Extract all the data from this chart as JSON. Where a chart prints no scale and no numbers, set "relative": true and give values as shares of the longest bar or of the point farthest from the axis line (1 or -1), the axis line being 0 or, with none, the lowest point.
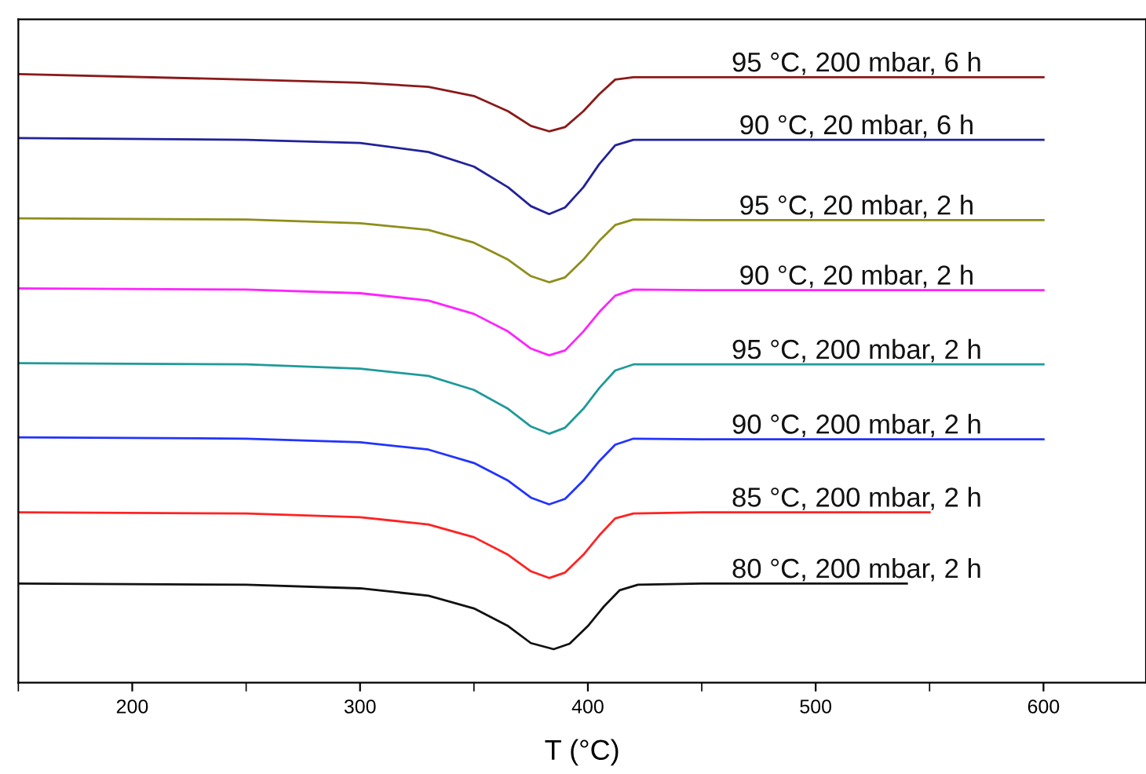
{
  "chart_data": {
    "type": "line",
    "relative": true,
    "xlabel": "T (°C)",
    "xlim": [
      150,
      645
    ],
    "xticks": [
      {
        "value": 150,
        "label": null
      },
      200,
      {
        "value": 250,
        "label": null
      },
      300,
      {
        "value": 350,
        "label": null
      },
      400,
      {
        "value": 450,
        "label": null
      },
      500,
      {
        "value": 550,
        "label": null
      },
      600
    ],
    "grid": false,
    "legend": false,
    "marker": "none",
    "line_style": "solid",
    "tick_labels": "x",
    "series": [
      {
        "name": "95 °C, 200 mbar, 6 h",
        "color": "#8b1a1a",
        "x": [
          150,
          250,
          300,
          330,
          350,
          365,
          375,
          383,
          390,
          398,
          405,
          412,
          420,
          450,
          600
        ],
        "values": [
          1.0,
          0.991,
          0.986,
          0.979,
          0.964,
          0.939,
          0.915,
          0.906,
          0.913,
          0.939,
          0.967,
          0.991,
          0.995,
          0.995,
          0.995
        ]
      },
      {
        "name": "90 °C, 20 mbar, 6 h",
        "color": "#22229a",
        "x": [
          150,
          250,
          300,
          330,
          350,
          365,
          375,
          383,
          390,
          398,
          405,
          412,
          420,
          450,
          600
        ],
        "values": [
          0.895,
          0.892,
          0.887,
          0.872,
          0.848,
          0.814,
          0.783,
          0.77,
          0.781,
          0.814,
          0.852,
          0.883,
          0.892,
          0.892,
          0.892
        ]
      },
      {
        "name": "95 °C, 20 mbar, 2 h",
        "color": "#8e8e1c",
        "x": [
          150,
          250,
          300,
          330,
          350,
          365,
          375,
          383,
          390,
          398,
          405,
          412,
          420,
          450,
          600
        ],
        "values": [
          0.763,
          0.761,
          0.755,
          0.744,
          0.723,
          0.695,
          0.668,
          0.658,
          0.666,
          0.695,
          0.726,
          0.752,
          0.761,
          0.76,
          0.76
        ]
      },
      {
        "name": "90 °C, 20 mbar, 2 h",
        "color": "#ff22ff",
        "x": [
          150,
          250,
          300,
          330,
          350,
          365,
          375,
          383,
          390,
          398,
          405,
          412,
          420,
          450,
          600
        ],
        "values": [
          0.648,
          0.646,
          0.64,
          0.628,
          0.606,
          0.577,
          0.549,
          0.538,
          0.546,
          0.577,
          0.609,
          0.636,
          0.646,
          0.645,
          0.645
        ]
      },
      {
        "name": "95 °C, 200 mbar, 2 h",
        "color": "#1f9a9a",
        "x": [
          150,
          250,
          300,
          330,
          350,
          365,
          375,
          383,
          390,
          398,
          405,
          412,
          420,
          450,
          600
        ],
        "values": [
          0.525,
          0.523,
          0.516,
          0.504,
          0.481,
          0.45,
          0.421,
          0.409,
          0.419,
          0.45,
          0.484,
          0.513,
          0.523,
          0.523,
          0.523
        ]
      },
      {
        "name": "90 °C, 200 mbar, 2 h",
        "color": "#2233ff",
        "x": [
          150,
          250,
          300,
          330,
          350,
          365,
          375,
          383,
          390,
          398,
          405,
          412,
          420,
          450,
          600
        ],
        "values": [
          0.403,
          0.401,
          0.395,
          0.383,
          0.361,
          0.332,
          0.304,
          0.293,
          0.302,
          0.332,
          0.364,
          0.391,
          0.401,
          0.4,
          0.4
        ]
      },
      {
        "name": "85 °C, 200 mbar, 2 h",
        "color": "#ff2222",
        "x": [
          150,
          250,
          300,
          330,
          350,
          365,
          375,
          383,
          390,
          398,
          405,
          412,
          420,
          450,
          550
        ],
        "values": [
          0.28,
          0.278,
          0.272,
          0.26,
          0.239,
          0.21,
          0.183,
          0.172,
          0.181,
          0.21,
          0.242,
          0.27,
          0.278,
          0.28,
          0.28
        ]
      },
      {
        "name": "80 °C, 200 mbar, 2 h",
        "color": "#111111",
        "x": [
          150,
          250,
          300,
          330,
          350,
          365,
          375,
          385,
          392,
          400,
          407,
          414,
          422,
          450,
          540
        ],
        "values": [
          0.163,
          0.161,
          0.155,
          0.143,
          0.122,
          0.093,
          0.065,
          0.055,
          0.064,
          0.093,
          0.125,
          0.152,
          0.161,
          0.163,
          0.163
        ]
      }
    ]
  }
}
